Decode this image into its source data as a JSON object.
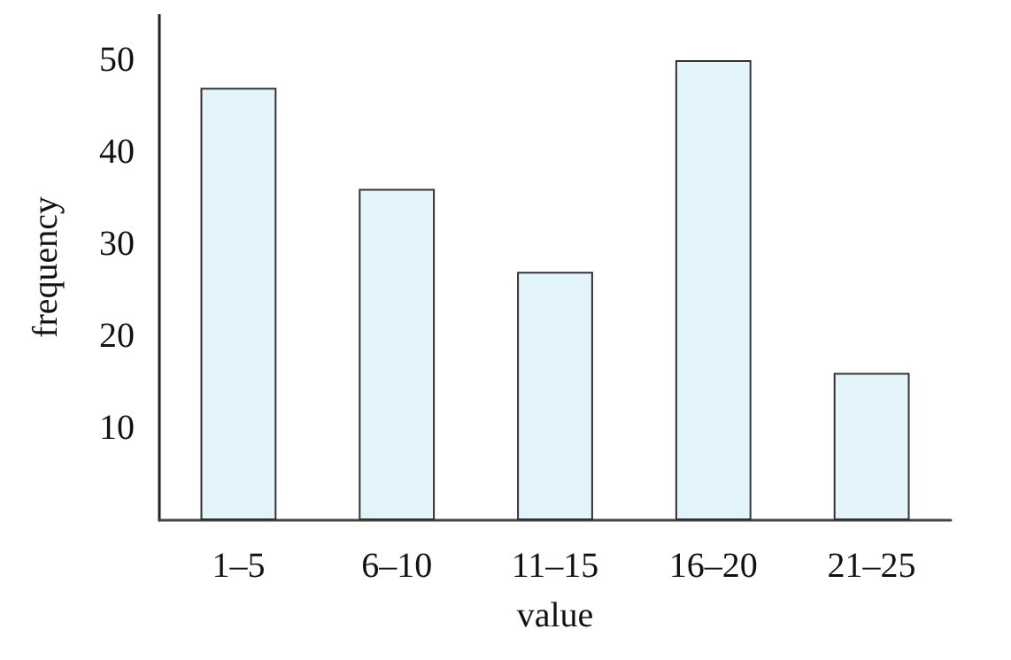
{
  "chart_data": {
    "type": "bar",
    "xlabel": "value",
    "ylabel": "frequency",
    "categories": [
      "1–5",
      "6–10",
      "11–15",
      "16–20",
      "21–25"
    ],
    "values": [
      47,
      36,
      27,
      50,
      16
    ],
    "color": "#e3f4fb",
    "ylim": [
      0,
      55
    ],
    "yticks": [
      10,
      20,
      30,
      40,
      50
    ],
    "grid": false
  }
}
